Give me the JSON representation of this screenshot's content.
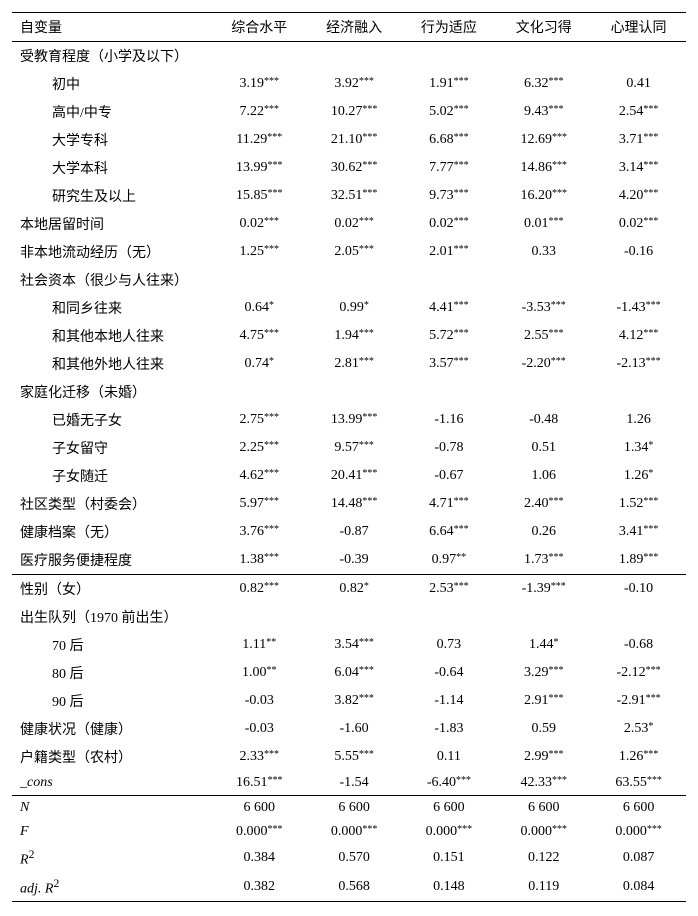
{
  "columns": [
    "自变量",
    "综合水平",
    "经济融入",
    "行为适应",
    "文化习得",
    "心理认同"
  ],
  "section1": {
    "edu_header": "受教育程度（小学及以下）",
    "edu_rows": [
      {
        "label": "初中",
        "cells": [
          {
            "v": "3.19",
            "s": "***"
          },
          {
            "v": "3.92",
            "s": "***"
          },
          {
            "v": "1.91",
            "s": "***"
          },
          {
            "v": "6.32",
            "s": "***"
          },
          {
            "v": "0.41",
            "s": ""
          }
        ]
      },
      {
        "label": "高中/中专",
        "cells": [
          {
            "v": "7.22",
            "s": "***"
          },
          {
            "v": "10.27",
            "s": "***"
          },
          {
            "v": "5.02",
            "s": "***"
          },
          {
            "v": "9.43",
            "s": "***"
          },
          {
            "v": "2.54",
            "s": "***"
          }
        ]
      },
      {
        "label": "大学专科",
        "cells": [
          {
            "v": "11.29",
            "s": "***"
          },
          {
            "v": "21.10",
            "s": "***"
          },
          {
            "v": "6.68",
            "s": "***"
          },
          {
            "v": "12.69",
            "s": "***"
          },
          {
            "v": "3.71",
            "s": "***"
          }
        ]
      },
      {
        "label": "大学本科",
        "cells": [
          {
            "v": "13.99",
            "s": "***"
          },
          {
            "v": "30.62",
            "s": "***"
          },
          {
            "v": "7.77",
            "s": "***"
          },
          {
            "v": "14.86",
            "s": "***"
          },
          {
            "v": "3.14",
            "s": "***"
          }
        ]
      },
      {
        "label": "研究生及以上",
        "cells": [
          {
            "v": "15.85",
            "s": "***"
          },
          {
            "v": "32.51",
            "s": "***"
          },
          {
            "v": "9.73",
            "s": "***"
          },
          {
            "v": "16.20",
            "s": "***"
          },
          {
            "v": "4.20",
            "s": "***"
          }
        ]
      }
    ],
    "residence": {
      "label": "本地居留时间",
      "cells": [
        {
          "v": "0.02",
          "s": "***"
        },
        {
          "v": "0.02",
          "s": "***"
        },
        {
          "v": "0.02",
          "s": "***"
        },
        {
          "v": "0.01",
          "s": "***"
        },
        {
          "v": "0.02",
          "s": "***"
        }
      ]
    },
    "nonlocal": {
      "label": "非本地流动经历（无）",
      "cells": [
        {
          "v": "1.25",
          "s": "***"
        },
        {
          "v": "2.05",
          "s": "***"
        },
        {
          "v": "2.01",
          "s": "***"
        },
        {
          "v": "0.33",
          "s": ""
        },
        {
          "v": "-0.16",
          "s": ""
        }
      ]
    },
    "social_header": "社会资本（很少与人往来）",
    "social_rows": [
      {
        "label": "和同乡往来",
        "cells": [
          {
            "v": "0.64",
            "s": "*"
          },
          {
            "v": "0.99",
            "s": "*"
          },
          {
            "v": "4.41",
            "s": "***"
          },
          {
            "v": "-3.53",
            "s": "***"
          },
          {
            "v": "-1.43",
            "s": "***"
          }
        ]
      },
      {
        "label": "和其他本地人往来",
        "cells": [
          {
            "v": "4.75",
            "s": "***"
          },
          {
            "v": "1.94",
            "s": "***"
          },
          {
            "v": "5.72",
            "s": "***"
          },
          {
            "v": "2.55",
            "s": "***"
          },
          {
            "v": "4.12",
            "s": "***"
          }
        ]
      },
      {
        "label": "和其他外地人往来",
        "cells": [
          {
            "v": "0.74",
            "s": "*"
          },
          {
            "v": "2.81",
            "s": "***"
          },
          {
            "v": "3.57",
            "s": "***"
          },
          {
            "v": "-2.20",
            "s": "***"
          },
          {
            "v": "-2.13",
            "s": "***"
          }
        ]
      }
    ],
    "family_header": "家庭化迁移（未婚）",
    "family_rows": [
      {
        "label": "已婚无子女",
        "cells": [
          {
            "v": "2.75",
            "s": "***"
          },
          {
            "v": "13.99",
            "s": "***"
          },
          {
            "v": "-1.16",
            "s": ""
          },
          {
            "v": "-0.48",
            "s": ""
          },
          {
            "v": "1.26",
            "s": ""
          }
        ]
      },
      {
        "label": "子女留守",
        "cells": [
          {
            "v": "2.25",
            "s": "***"
          },
          {
            "v": "9.57",
            "s": "***"
          },
          {
            "v": "-0.78",
            "s": ""
          },
          {
            "v": "0.51",
            "s": ""
          },
          {
            "v": "1.34",
            "s": "*"
          }
        ]
      },
      {
        "label": "子女随迁",
        "cells": [
          {
            "v": "4.62",
            "s": "***"
          },
          {
            "v": "20.41",
            "s": "***"
          },
          {
            "v": "-0.67",
            "s": ""
          },
          {
            "v": "1.06",
            "s": ""
          },
          {
            "v": "1.26",
            "s": "*"
          }
        ]
      }
    ],
    "community": {
      "label": "社区类型（村委会）",
      "cells": [
        {
          "v": "5.97",
          "s": "***"
        },
        {
          "v": "14.48",
          "s": "***"
        },
        {
          "v": "4.71",
          "s": "***"
        },
        {
          "v": "2.40",
          "s": "***"
        },
        {
          "v": "1.52",
          "s": "***"
        }
      ]
    },
    "health_rec": {
      "label": "健康档案（无）",
      "cells": [
        {
          "v": "3.76",
          "s": "***"
        },
        {
          "v": "-0.87",
          "s": ""
        },
        {
          "v": "6.64",
          "s": "***"
        },
        {
          "v": "0.26",
          "s": ""
        },
        {
          "v": "3.41",
          "s": "***"
        }
      ]
    },
    "med_access": {
      "label": "医疗服务便捷程度",
      "cells": [
        {
          "v": "1.38",
          "s": "***"
        },
        {
          "v": "-0.39",
          "s": ""
        },
        {
          "v": "0.97",
          "s": "**"
        },
        {
          "v": "1.73",
          "s": "***"
        },
        {
          "v": "1.89",
          "s": "***"
        }
      ]
    }
  },
  "section2": {
    "gender": {
      "label": "性别（女）",
      "cells": [
        {
          "v": "0.82",
          "s": "***"
        },
        {
          "v": "0.82",
          "s": "*"
        },
        {
          "v": "2.53",
          "s": "***"
        },
        {
          "v": "-1.39",
          "s": "***"
        },
        {
          "v": "-0.10",
          "s": ""
        }
      ]
    },
    "cohort_header": "出生队列（1970 前出生）",
    "cohort_rows": [
      {
        "label": "70 后",
        "cells": [
          {
            "v": "1.11",
            "s": "**"
          },
          {
            "v": "3.54",
            "s": "***"
          },
          {
            "v": "0.73",
            "s": ""
          },
          {
            "v": "1.44",
            "s": "*"
          },
          {
            "v": "-0.68",
            "s": ""
          }
        ]
      },
      {
        "label": "80 后",
        "cells": [
          {
            "v": "1.00",
            "s": "**"
          },
          {
            "v": "6.04",
            "s": "***"
          },
          {
            "v": "-0.64",
            "s": ""
          },
          {
            "v": "3.29",
            "s": "***"
          },
          {
            "v": "-2.12",
            "s": "***"
          }
        ]
      },
      {
        "label": "90 后",
        "cells": [
          {
            "v": "-0.03",
            "s": ""
          },
          {
            "v": "3.82",
            "s": "***"
          },
          {
            "v": "-1.14",
            "s": ""
          },
          {
            "v": "2.91",
            "s": "***"
          },
          {
            "v": "-2.91",
            "s": "***"
          }
        ]
      }
    ],
    "health": {
      "label": "健康状况（健康）",
      "cells": [
        {
          "v": "-0.03",
          "s": ""
        },
        {
          "v": "-1.60",
          "s": ""
        },
        {
          "v": "-1.83",
          "s": ""
        },
        {
          "v": "0.59",
          "s": ""
        },
        {
          "v": "2.53",
          "s": "*"
        }
      ]
    },
    "hukou": {
      "label": "户籍类型（农村）",
      "cells": [
        {
          "v": "2.33",
          "s": "***"
        },
        {
          "v": "5.55",
          "s": "***"
        },
        {
          "v": "0.11",
          "s": ""
        },
        {
          "v": "2.99",
          "s": "***"
        },
        {
          "v": "1.26",
          "s": "***"
        }
      ]
    },
    "cons": {
      "label": "_cons",
      "cells": [
        {
          "v": "16.51",
          "s": "***"
        },
        {
          "v": "-1.54",
          "s": ""
        },
        {
          "v": "-6.40",
          "s": "***"
        },
        {
          "v": "42.33",
          "s": "***"
        },
        {
          "v": "63.55",
          "s": "***"
        }
      ]
    }
  },
  "section3": {
    "N": {
      "label": "N",
      "cells": [
        {
          "v": "6 600",
          "s": ""
        },
        {
          "v": "6 600",
          "s": ""
        },
        {
          "v": "6 600",
          "s": ""
        },
        {
          "v": "6 600",
          "s": ""
        },
        {
          "v": "6 600",
          "s": ""
        }
      ]
    },
    "F": {
      "label": "F",
      "cells": [
        {
          "v": "0.000",
          "s": "***"
        },
        {
          "v": "0.000",
          "s": "***"
        },
        {
          "v": "0.000",
          "s": "***"
        },
        {
          "v": "0.000",
          "s": "***"
        },
        {
          "v": "0.000",
          "s": "***"
        }
      ]
    },
    "R2": {
      "label": "R",
      "sup": "2",
      "cells": [
        {
          "v": "0.384",
          "s": ""
        },
        {
          "v": "0.570",
          "s": ""
        },
        {
          "v": "0.151",
          "s": ""
        },
        {
          "v": "0.122",
          "s": ""
        },
        {
          "v": "0.087",
          "s": ""
        }
      ]
    },
    "adjR2": {
      "label": "adj. R",
      "sup": "2",
      "cells": [
        {
          "v": "0.382",
          "s": ""
        },
        {
          "v": "0.568",
          "s": ""
        },
        {
          "v": "0.148",
          "s": ""
        },
        {
          "v": "0.119",
          "s": ""
        },
        {
          "v": "0.084",
          "s": ""
        }
      ]
    }
  }
}
